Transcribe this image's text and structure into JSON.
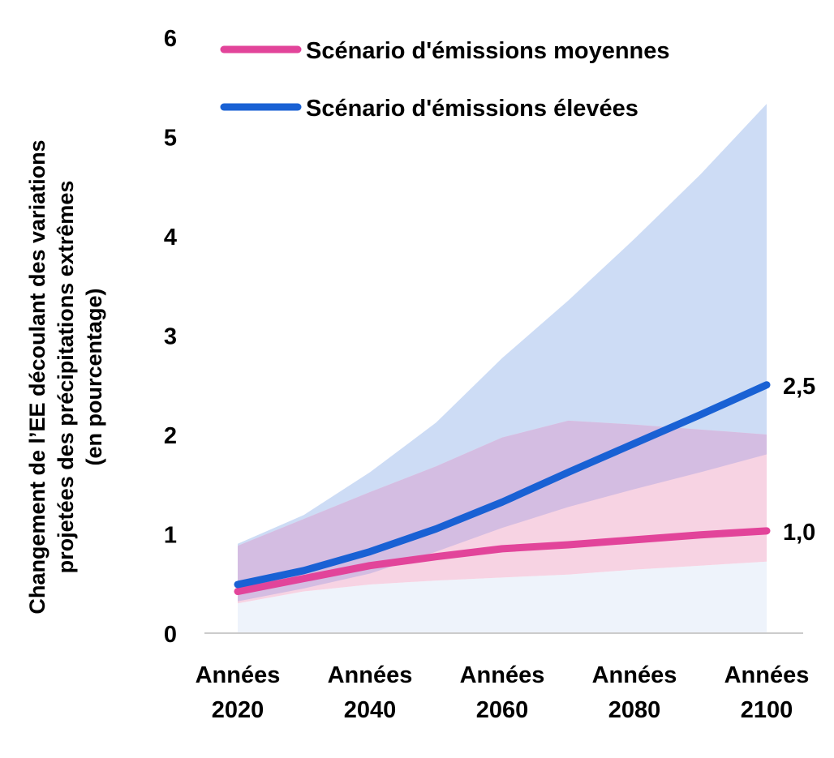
{
  "chart_data": {
    "type": "line",
    "title": "",
    "ylabel": [
      "Changement de l’EE découlant des variations",
      "projetées des précipitations extrêmes",
      "(en pourcentage)"
    ],
    "xlabel": "",
    "ylim": [
      0,
      6
    ],
    "yticks": [
      "0",
      "1",
      "2",
      "3",
      "4",
      "5",
      "6"
    ],
    "x": [
      2020,
      2030,
      2040,
      2050,
      2060,
      2070,
      2080,
      2090,
      2100
    ],
    "xticks": [
      {
        "x": 2020,
        "line1": "Années",
        "line2": "2020"
      },
      {
        "x": 2040,
        "line1": "Années",
        "line2": "2040"
      },
      {
        "x": 2060,
        "line1": "Années",
        "line2": "2060"
      },
      {
        "x": 2080,
        "line1": "Années",
        "line2": "2080"
      },
      {
        "x": 2100,
        "line1": "Années",
        "line2": "2100"
      }
    ],
    "series": [
      {
        "name": "Scénario d'émissions moyennes",
        "color": "#e2449a",
        "values": [
          0.42,
          0.55,
          0.68,
          0.77,
          0.85,
          0.89,
          0.94,
          0.99,
          1.03
        ],
        "band_lower": [
          0.3,
          0.42,
          0.49,
          0.53,
          0.56,
          0.59,
          0.64,
          0.68,
          0.72
        ],
        "band_upper": [
          0.88,
          1.15,
          1.42,
          1.68,
          1.97,
          2.14,
          2.1,
          2.05,
          2.0
        ],
        "end_label": "1,0"
      },
      {
        "name": "Scénario d'émissions élevées",
        "color": "#1961d4",
        "values": [
          0.49,
          0.63,
          0.82,
          1.05,
          1.32,
          1.62,
          1.91,
          2.2,
          2.5
        ],
        "band_lower": [
          0.32,
          0.45,
          0.6,
          0.82,
          1.06,
          1.27,
          1.45,
          1.62,
          1.8
        ],
        "band_upper": [
          0.9,
          1.19,
          1.62,
          2.12,
          2.77,
          3.35,
          3.97,
          4.62,
          5.33
        ],
        "end_label": "2,5"
      }
    ],
    "colors": {
      "high_band": "#cddcf5",
      "medium_band": "#f7d3e3",
      "overlap_band": "#d4bde2",
      "base_band": "#eef3fb",
      "axis": "#cccccc"
    },
    "legend_position": "top-left",
    "grid": false
  }
}
